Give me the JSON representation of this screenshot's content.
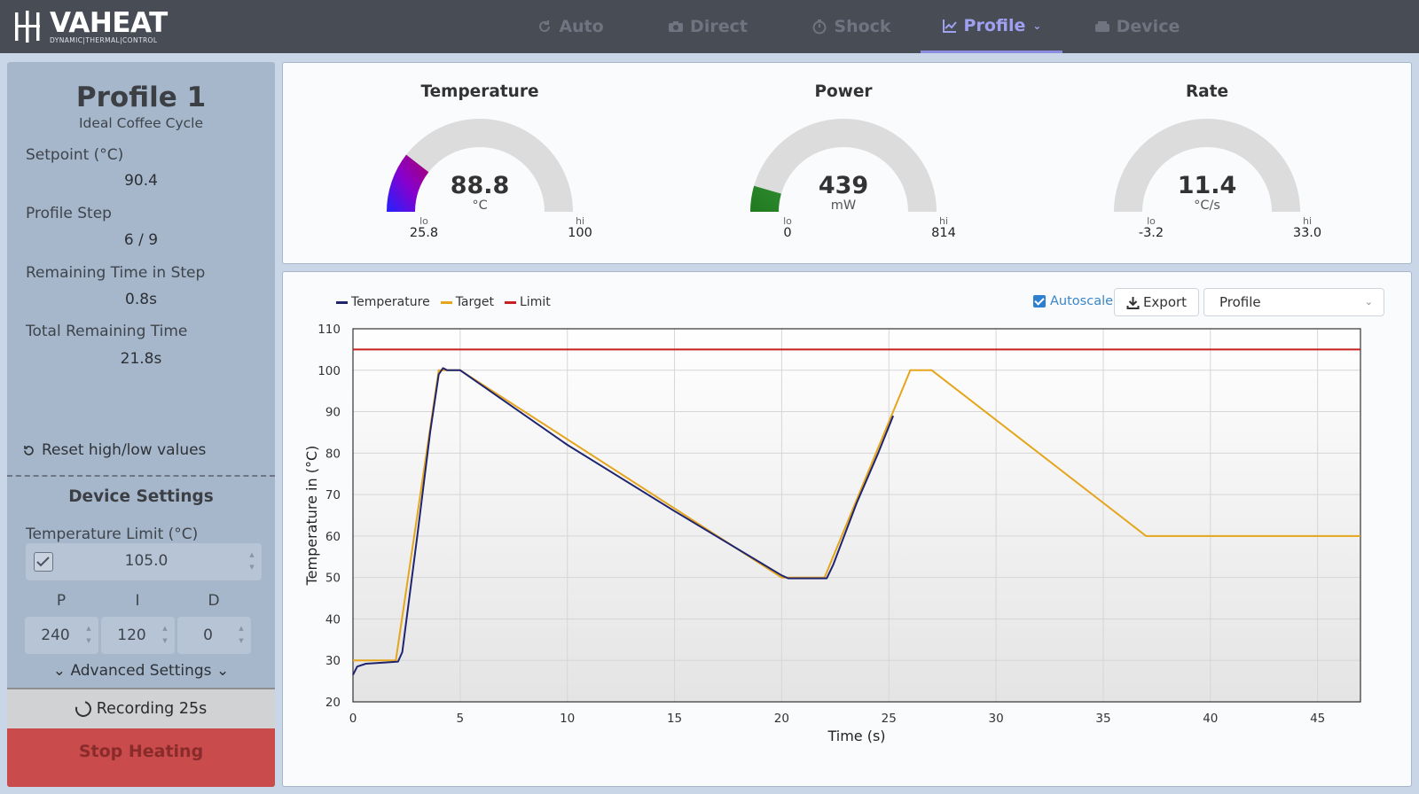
{
  "brand": {
    "name": "VAHEAT",
    "tagline": "DYNAMIC|THERMAL|CONTROL"
  },
  "nav": {
    "items": [
      {
        "label": "Auto",
        "icon": "refresh-icon",
        "active": false
      },
      {
        "label": "Direct",
        "icon": "camera-icon",
        "active": false
      },
      {
        "label": "Shock",
        "icon": "timer-icon",
        "active": false
      },
      {
        "label": "Profile",
        "icon": "chart-line-icon",
        "active": true
      },
      {
        "label": "Device",
        "icon": "device-icon",
        "active": false
      }
    ]
  },
  "sidebar": {
    "profile_title": "Profile 1",
    "profile_subtitle": "Ideal Coffee Cycle",
    "stats": [
      {
        "label": "Setpoint (°C)",
        "value": "90.4"
      },
      {
        "label": "Profile Step",
        "value": "6 / 9"
      },
      {
        "label": "Remaining Time in Step",
        "value": "0.8s"
      },
      {
        "label": "Total Remaining Time",
        "value": "21.8s"
      }
    ],
    "reset_label": "Reset high/low values",
    "device_settings_title": "Device Settings",
    "temp_limit_label": "Temperature Limit (°C)",
    "temp_limit_value": "105.0",
    "temp_limit_enabled": true,
    "pid": {
      "p_label": "P",
      "i_label": "I",
      "d_label": "D",
      "p_value": "240",
      "i_value": "120",
      "d_value": "0"
    },
    "advanced_label": "Advanced Settings",
    "recording_label": "Recording 25s",
    "stop_label": "Stop Heating"
  },
  "gauges": [
    {
      "title": "Temperature",
      "value": "88.8",
      "unit": "°C",
      "lo_label": "lo",
      "hi_label": "hi",
      "lo": "25.8",
      "hi": "100",
      "fill_fraction": 0.21,
      "fill_colors": [
        "#2222ff",
        "#8800cc",
        "#aa0066"
      ]
    },
    {
      "title": "Power",
      "value": "439",
      "unit": "mW",
      "lo_label": "lo",
      "hi_label": "hi",
      "lo": "0",
      "hi": "814",
      "fill_fraction": 0.09,
      "fill_colors": [
        "#1f7a1f",
        "#2f8a2f"
      ]
    },
    {
      "title": "Rate",
      "value": "11.4",
      "unit": "°C/s",
      "lo_label": "lo",
      "hi_label": "hi",
      "lo": "-3.2",
      "hi": "33.0",
      "fill_fraction": 0.0,
      "fill_colors": [
        "#999999"
      ]
    }
  ],
  "chart_controls": {
    "autoscale_label": "Autoscale",
    "autoscale_checked": true,
    "export_label": "Export",
    "select_value": "Profile"
  },
  "chart_data": {
    "type": "line",
    "xlabel": "Time (s)",
    "ylabel": "Temperature in (°C)",
    "xlim": [
      0,
      47
    ],
    "ylim": [
      20,
      110
    ],
    "x_ticks": [
      0,
      5,
      10,
      15,
      20,
      25,
      30,
      35,
      40,
      45
    ],
    "y_ticks": [
      20,
      30,
      40,
      50,
      60,
      70,
      80,
      90,
      100,
      110
    ],
    "grid": true,
    "legend_position": "top-left",
    "series": [
      {
        "name": "Temperature",
        "color": "#1f2470",
        "points": [
          [
            0,
            26.5
          ],
          [
            0.2,
            28.5
          ],
          [
            0.6,
            29.2
          ],
          [
            1.5,
            29.5
          ],
          [
            2.1,
            29.7
          ],
          [
            2.3,
            32
          ],
          [
            3.0,
            60
          ],
          [
            3.6,
            85
          ],
          [
            4.0,
            99
          ],
          [
            4.2,
            100.5
          ],
          [
            4.4,
            100
          ],
          [
            5.0,
            100
          ],
          [
            10.0,
            82
          ],
          [
            15.0,
            66
          ],
          [
            20.0,
            50.5
          ],
          [
            20.3,
            49.8
          ],
          [
            22.1,
            49.8
          ],
          [
            22.4,
            53
          ],
          [
            23.5,
            68
          ],
          [
            24.5,
            80
          ],
          [
            25.2,
            89
          ]
        ]
      },
      {
        "name": "Target",
        "color": "#e5a51c",
        "points": [
          [
            0,
            30
          ],
          [
            2.0,
            30
          ],
          [
            4.0,
            100
          ],
          [
            5.0,
            100
          ],
          [
            20.0,
            50
          ],
          [
            22.0,
            50
          ],
          [
            26.0,
            100
          ],
          [
            27.0,
            100
          ],
          [
            37.0,
            60
          ],
          [
            47.0,
            60
          ]
        ]
      },
      {
        "name": "Limit",
        "color": "#c82020",
        "points": [
          [
            0,
            105
          ],
          [
            47,
            105
          ]
        ]
      }
    ]
  }
}
